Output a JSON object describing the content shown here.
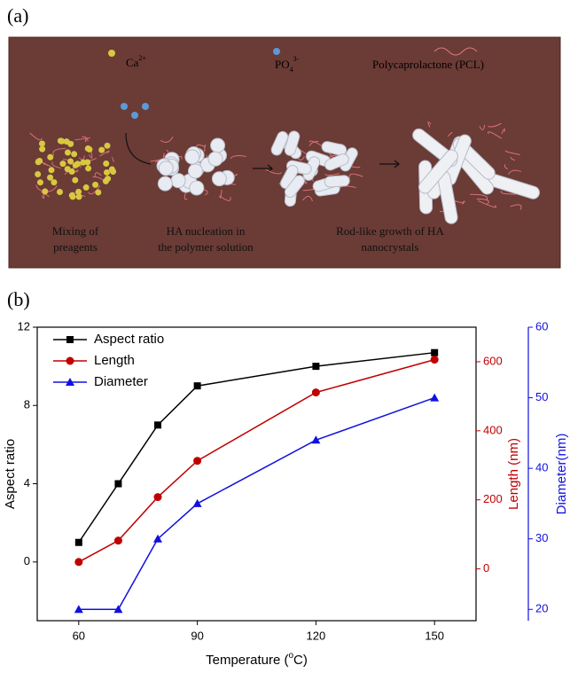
{
  "panel_a": {
    "label": "(a)",
    "legend": {
      "ca": {
        "base": "Ca",
        "sup": "2+"
      },
      "po": {
        "base": "PO",
        "sub": "4",
        "sup": "3-"
      },
      "pcl": "Polycaprolactone (PCL)"
    },
    "steps": [
      [
        "Mixing of",
        "preagents"
      ],
      [
        "HA nucleation  in",
        "the polymer solution"
      ],
      [
        "Rod-like growth of HA",
        "nanocrystals"
      ]
    ]
  },
  "panel_b": {
    "label": "(b)"
  },
  "chart_data": {
    "type": "line",
    "x": [
      60,
      70,
      80,
      90,
      120,
      150
    ],
    "xlim": [
      49.5,
      160.5
    ],
    "xticks": [
      60,
      90,
      120,
      150
    ],
    "x_label": {
      "text": "Temperature  (",
      "sup": "o",
      "tail": "C)"
    },
    "y_label": "Aspect ratio",
    "y2_label": "Length (nm)",
    "y3_label": "Diameter(nm)",
    "ylim": [
      -3,
      12
    ],
    "yticks": [
      0,
      4,
      8,
      12
    ],
    "y2lim": [
      -150,
      700
    ],
    "y2ticks": [
      0,
      200,
      400,
      600
    ],
    "y3lim": [
      18.4,
      60
    ],
    "y3ticks": [
      20,
      30,
      40,
      50,
      60
    ],
    "legend_position": "upper-left",
    "series": [
      {
        "name": "Aspect ratio",
        "color": "#000000",
        "marker": "square",
        "axis": "y",
        "values": [
          1,
          4,
          7,
          9,
          10,
          10.7
        ]
      },
      {
        "name": "Length",
        "color": "#c00000",
        "marker": "circle",
        "axis": "y2",
        "values": [
          20,
          82,
          208,
          313,
          511,
          606
        ]
      },
      {
        "name": "Diameter",
        "color": "#1010e0",
        "marker": "triangle",
        "axis": "y3",
        "values": [
          20,
          20,
          30,
          35,
          44,
          50
        ]
      }
    ]
  }
}
